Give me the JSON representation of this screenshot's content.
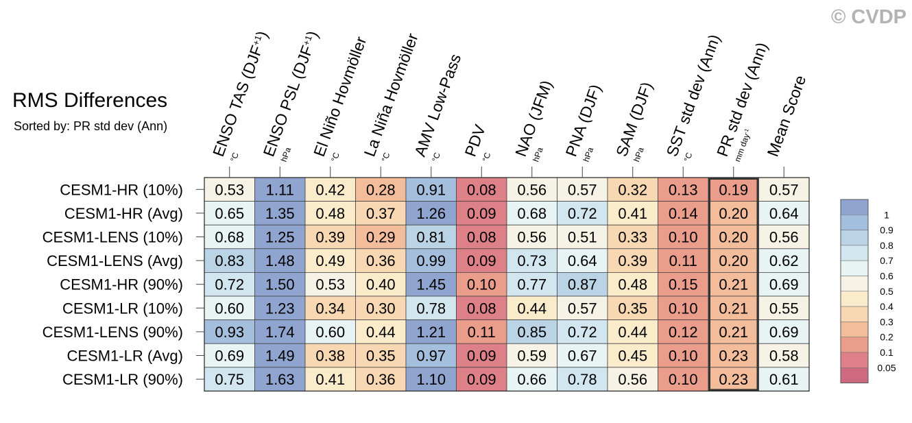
{
  "watermark": "© CVDP",
  "chart_data": {
    "type": "heatmap",
    "title": "RMS Differences",
    "subtitle": "Sorted by: PR std dev (Ann)",
    "columns": [
      {
        "label": "ENSO TAS (DJF+1)",
        "main": "ENSO TAS (DJF",
        "sup": "+1",
        "close": ")",
        "unit": "°C",
        "unit_sup": ""
      },
      {
        "label": "ENSO PSL (DJF+1)",
        "main": "ENSO PSL (DJF",
        "sup": "+1",
        "close": ")",
        "unit": "hPa",
        "unit_sup": ""
      },
      {
        "label": "El Niño Hovmöller",
        "main": "El Niño Hovmöller",
        "sup": "",
        "close": "",
        "unit": "°C",
        "unit_sup": ""
      },
      {
        "label": "La Niña Hovmöller",
        "main": "La Niña Hovmöller",
        "sup": "",
        "close": "",
        "unit": "°C",
        "unit_sup": ""
      },
      {
        "label": "AMV Low-Pass",
        "main": "AMV Low-Pass",
        "sup": "",
        "close": "",
        "unit": "°C",
        "unit_sup": ""
      },
      {
        "label": "PDV",
        "main": "PDV",
        "sup": "",
        "close": "",
        "unit": "°C",
        "unit_sup": ""
      },
      {
        "label": "NAO (JFM)",
        "main": "NAO (JFM)",
        "sup": "",
        "close": "",
        "unit": "hPa",
        "unit_sup": ""
      },
      {
        "label": "PNA (DJF)",
        "main": "PNA (DJF)",
        "sup": "",
        "close": "",
        "unit": "hPa",
        "unit_sup": ""
      },
      {
        "label": "SAM (DJF)",
        "main": "SAM (DJF)",
        "sup": "",
        "close": "",
        "unit": "hPa",
        "unit_sup": ""
      },
      {
        "label": "SST std dev (Ann)",
        "main": "SST std dev (Ann)",
        "sup": "",
        "close": "",
        "unit": "°C",
        "unit_sup": ""
      },
      {
        "label": "PR std dev (Ann)",
        "main": "PR std dev (Ann)",
        "sup": "",
        "close": "",
        "unit": "mm day",
        "unit_sup": "-1"
      },
      {
        "label": "Mean Score",
        "main": "Mean Score",
        "sup": "",
        "close": "",
        "unit": "",
        "unit_sup": ""
      }
    ],
    "rows": [
      {
        "name": "CESM1-HR (10%)",
        "values": [
          "0.53",
          "1.11",
          "0.42",
          "0.28",
          "0.91",
          "0.08",
          "0.56",
          "0.57",
          "0.32",
          "0.13",
          "0.19",
          "0.57"
        ]
      },
      {
        "name": "CESM1-HR (Avg)",
        "values": [
          "0.65",
          "1.35",
          "0.48",
          "0.37",
          "1.26",
          "0.09",
          "0.68",
          "0.72",
          "0.41",
          "0.14",
          "0.20",
          "0.64"
        ]
      },
      {
        "name": "CESM1-LENS (10%)",
        "values": [
          "0.68",
          "1.25",
          "0.39",
          "0.29",
          "0.81",
          "0.08",
          "0.56",
          "0.51",
          "0.33",
          "0.10",
          "0.20",
          "0.56"
        ]
      },
      {
        "name": "CESM1-LENS (Avg)",
        "values": [
          "0.83",
          "1.48",
          "0.49",
          "0.36",
          "0.99",
          "0.09",
          "0.73",
          "0.64",
          "0.39",
          "0.11",
          "0.20",
          "0.62"
        ]
      },
      {
        "name": "CESM1-HR (90%)",
        "values": [
          "0.72",
          "1.50",
          "0.53",
          "0.40",
          "1.45",
          "0.10",
          "0.77",
          "0.87",
          "0.48",
          "0.15",
          "0.21",
          "0.69"
        ]
      },
      {
        "name": "CESM1-LR (10%)",
        "values": [
          "0.60",
          "1.23",
          "0.34",
          "0.30",
          "0.78",
          "0.08",
          "0.44",
          "0.57",
          "0.35",
          "0.10",
          "0.21",
          "0.55"
        ]
      },
      {
        "name": "CESM1-LENS (90%)",
        "values": [
          "0.93",
          "1.74",
          "0.60",
          "0.44",
          "1.21",
          "0.11",
          "0.85",
          "0.72",
          "0.44",
          "0.12",
          "0.21",
          "0.69"
        ]
      },
      {
        "name": "CESM1-LR (Avg)",
        "values": [
          "0.69",
          "1.49",
          "0.38",
          "0.35",
          "0.97",
          "0.09",
          "0.59",
          "0.67",
          "0.45",
          "0.10",
          "0.23",
          "0.58"
        ]
      },
      {
        "name": "CESM1-LR (90%)",
        "values": [
          "0.75",
          "1.63",
          "0.41",
          "0.36",
          "1.10",
          "0.09",
          "0.66",
          "0.78",
          "0.56",
          "0.10",
          "0.23",
          "0.61"
        ]
      }
    ],
    "highlighted_column": "PR std dev (Ann)",
    "colorbar": {
      "tick_labels": [
        "1",
        "0.9",
        "0.8",
        "0.7",
        "0.6",
        "0.5",
        "0.4",
        "0.3",
        "0.2",
        "0.1",
        "0.05"
      ],
      "colors": [
        "#8fa4cf",
        "#a4bedd",
        "#bad4e6",
        "#d2e6ef",
        "#e8f3f4",
        "#f6f3e6",
        "#faeccb",
        "#f7d8b2",
        "#f3bd9b",
        "#eb9d8b",
        "#dd8088",
        "#cd6a80"
      ]
    }
  }
}
